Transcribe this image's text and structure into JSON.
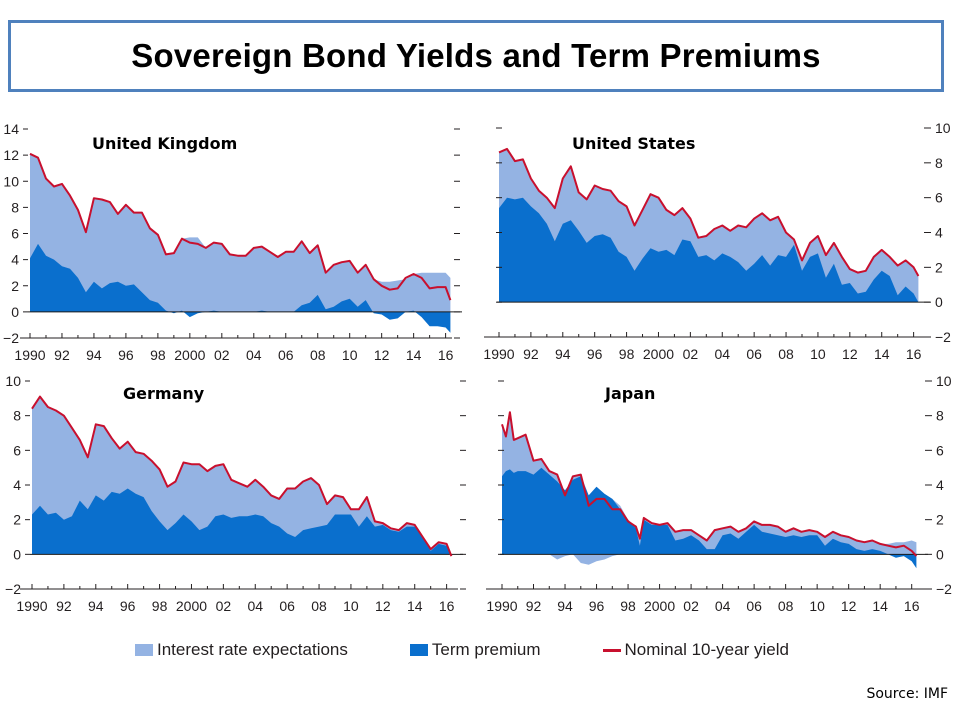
{
  "title": "Sovereign Bond Yields and Term Premiums",
  "source": "Source: IMF",
  "colors": {
    "expectations": "#94b3e3",
    "term_premium": "#0a6fcd",
    "yield": "#c8102e",
    "axis": "#231f20",
    "title_border": "#4f81bd"
  },
  "legend": [
    {
      "label": "Interest rate expectations",
      "type": "swatch",
      "color_key": "expectations"
    },
    {
      "label": "Term premium",
      "type": "swatch",
      "color_key": "term_premium"
    },
    {
      "label": "Nominal 10-year yield",
      "type": "line",
      "color_key": "yield"
    }
  ],
  "chart_data": [
    {
      "type": "area",
      "title": "United Kingdom",
      "xlabel": "",
      "ylabel": "",
      "x_tick_labels": [
        "1990",
        "92",
        "94",
        "96",
        "98",
        "2000",
        "02",
        "04",
        "06",
        "08",
        "10",
        "12",
        "14",
        "16"
      ],
      "y_ticks": [
        -2,
        0,
        2,
        4,
        6,
        8,
        10,
        12,
        14
      ],
      "y_tick_side": "left",
      "ylim": [
        -2,
        14
      ],
      "xlim": [
        1990,
        2016.4
      ],
      "x": [
        1990,
        1990.5,
        1991,
        1991.5,
        1992,
        1992.5,
        1993,
        1993.5,
        1994,
        1994.5,
        1995,
        1995.5,
        1996,
        1996.5,
        1997,
        1997.5,
        1998,
        1998.5,
        1999,
        1999.5,
        2000,
        2000.5,
        2001,
        2001.5,
        2002,
        2002.5,
        2003,
        2003.5,
        2004,
        2004.5,
        2005,
        2005.5,
        2006,
        2006.5,
        2007,
        2007.5,
        2008,
        2008.5,
        2009,
        2009.5,
        2010,
        2010.5,
        2011,
        2011.5,
        2012,
        2012.5,
        2013,
        2013.5,
        2014,
        2014.5,
        2015,
        2015.5,
        2016,
        2016.3
      ],
      "series": [
        {
          "name": "Nominal 10-year yield",
          "values": [
            12.1,
            11.8,
            10.2,
            9.6,
            9.8,
            8.9,
            7.8,
            6.1,
            8.7,
            8.6,
            8.4,
            7.5,
            8.2,
            7.6,
            7.6,
            6.4,
            5.9,
            4.4,
            4.5,
            5.6,
            5.3,
            5.2,
            4.9,
            5.3,
            5.2,
            4.4,
            4.3,
            4.3,
            4.9,
            5.0,
            4.6,
            4.2,
            4.6,
            4.6,
            5.4,
            4.5,
            5.1,
            3.0,
            3.6,
            3.8,
            3.9,
            3.0,
            3.6,
            2.5,
            2.0,
            1.7,
            1.8,
            2.6,
            2.9,
            2.6,
            1.8,
            1.9,
            1.9,
            0.9
          ]
        },
        {
          "name": "Term premium",
          "values": [
            4.1,
            5.2,
            4.3,
            4.0,
            3.5,
            3.3,
            2.6,
            1.5,
            2.3,
            1.8,
            2.2,
            2.3,
            2.0,
            2.1,
            1.5,
            0.9,
            0.7,
            0.1,
            -0.1,
            0.1,
            -0.4,
            -0.1,
            0.0,
            0.1,
            0.0,
            0.0,
            0.0,
            0.0,
            0.0,
            0.1,
            0.0,
            0.0,
            0.0,
            0.0,
            0.5,
            0.7,
            1.3,
            0.2,
            0.4,
            0.8,
            1.0,
            0.4,
            0.9,
            -0.1,
            -0.2,
            -0.6,
            -0.5,
            0.0,
            0.1,
            -0.4,
            -1.1,
            -1.1,
            -1.2,
            -1.6
          ]
        }
      ]
    },
    {
      "type": "area",
      "title": "United States",
      "xlabel": "",
      "ylabel": "",
      "x_tick_labels": [
        "1990",
        "92",
        "94",
        "96",
        "98",
        "2000",
        "02",
        "04",
        "06",
        "08",
        "10",
        "12",
        "14",
        "16"
      ],
      "y_ticks": [
        -2,
        0,
        2,
        4,
        6,
        8,
        10
      ],
      "y_tick_side": "right",
      "ylim": [
        -2,
        10
      ],
      "xlim": [
        1990,
        2016.4
      ],
      "x": [
        1990,
        1990.5,
        1991,
        1991.5,
        1992,
        1992.5,
        1993,
        1993.5,
        1994,
        1994.5,
        1995,
        1995.5,
        1996,
        1996.5,
        1997,
        1997.5,
        1998,
        1998.5,
        1999,
        1999.5,
        2000,
        2000.5,
        2001,
        2001.5,
        2002,
        2002.5,
        2003,
        2003.5,
        2004,
        2004.5,
        2005,
        2005.5,
        2006,
        2006.5,
        2007,
        2007.5,
        2008,
        2008.5,
        2009,
        2009.5,
        2010,
        2010.5,
        2011,
        2011.5,
        2012,
        2012.5,
        2013,
        2013.5,
        2014,
        2014.5,
        2015,
        2015.5,
        2016,
        2016.3
      ],
      "series": [
        {
          "name": "Nominal 10-year yield",
          "values": [
            8.6,
            8.8,
            8.1,
            8.2,
            7.1,
            6.4,
            6.0,
            5.4,
            7.1,
            7.8,
            6.3,
            5.9,
            6.7,
            6.5,
            6.4,
            5.8,
            5.5,
            4.4,
            5.3,
            6.2,
            6.0,
            5.3,
            5.0,
            5.4,
            4.8,
            3.7,
            3.8,
            4.2,
            4.4,
            4.1,
            4.4,
            4.3,
            4.8,
            5.1,
            4.7,
            4.9,
            4.0,
            3.6,
            2.4,
            3.4,
            3.8,
            2.7,
            3.4,
            2.6,
            1.9,
            1.7,
            1.8,
            2.6,
            3.0,
            2.6,
            2.1,
            2.4,
            2.0,
            1.5
          ]
        },
        {
          "name": "Term premium",
          "values": [
            5.4,
            6.0,
            5.9,
            6.0,
            5.5,
            5.1,
            4.5,
            3.5,
            4.5,
            4.7,
            4.1,
            3.4,
            3.8,
            3.9,
            3.7,
            2.9,
            2.6,
            1.8,
            2.5,
            3.1,
            2.9,
            3.0,
            2.7,
            3.6,
            3.5,
            2.6,
            2.7,
            2.4,
            2.8,
            2.6,
            2.3,
            1.8,
            2.2,
            2.7,
            2.1,
            2.7,
            2.6,
            3.3,
            1.8,
            2.6,
            2.8,
            1.4,
            2.2,
            1.0,
            1.1,
            0.5,
            0.6,
            1.3,
            1.8,
            1.5,
            0.4,
            0.9,
            0.5,
            0.0
          ]
        }
      ]
    },
    {
      "type": "area",
      "title": "Germany",
      "xlabel": "",
      "ylabel": "",
      "x_tick_labels": [
        "1990",
        "92",
        "94",
        "96",
        "98",
        "2000",
        "02",
        "04",
        "06",
        "08",
        "10",
        "12",
        "14",
        "16"
      ],
      "y_ticks": [
        -2,
        0,
        2,
        4,
        6,
        8,
        10
      ],
      "y_tick_side": "left",
      "ylim": [
        -2,
        10
      ],
      "xlim": [
        1990,
        2016.4
      ],
      "x": [
        1990,
        1990.5,
        1991,
        1991.5,
        1992,
        1992.5,
        1993,
        1993.5,
        1994,
        1994.5,
        1995,
        1995.5,
        1996,
        1996.5,
        1997,
        1997.5,
        1998,
        1998.5,
        1999,
        1999.5,
        2000,
        2000.5,
        2001,
        2001.5,
        2002,
        2002.5,
        2003,
        2003.5,
        2004,
        2004.5,
        2005,
        2005.5,
        2006,
        2006.5,
        2007,
        2007.5,
        2008,
        2008.5,
        2009,
        2009.5,
        2010,
        2010.5,
        2011,
        2011.5,
        2012,
        2012.5,
        2013,
        2013.5,
        2014,
        2014.5,
        2015,
        2015.5,
        2016,
        2016.3
      ],
      "series": [
        {
          "name": "Nominal 10-year yield",
          "values": [
            8.4,
            9.1,
            8.5,
            8.3,
            8.0,
            7.3,
            6.6,
            5.6,
            7.5,
            7.4,
            6.7,
            6.1,
            6.5,
            5.9,
            5.8,
            5.4,
            4.9,
            3.9,
            4.2,
            5.3,
            5.2,
            5.2,
            4.8,
            5.1,
            5.2,
            4.3,
            4.1,
            3.9,
            4.3,
            3.9,
            3.4,
            3.2,
            3.8,
            3.8,
            4.2,
            4.4,
            4.0,
            2.9,
            3.4,
            3.3,
            2.6,
            2.6,
            3.3,
            1.9,
            1.8,
            1.5,
            1.4,
            1.8,
            1.7,
            1.0,
            0.3,
            0.7,
            0.6,
            -0.1
          ]
        },
        {
          "name": "Term premium",
          "values": [
            2.3,
            2.8,
            2.3,
            2.4,
            2.0,
            2.2,
            3.1,
            2.6,
            3.4,
            3.1,
            3.6,
            3.5,
            3.8,
            3.5,
            3.3,
            2.5,
            1.9,
            1.4,
            1.8,
            2.3,
            1.9,
            1.4,
            1.6,
            2.2,
            2.3,
            2.1,
            2.2,
            2.2,
            2.3,
            2.2,
            1.8,
            1.6,
            1.2,
            1.0,
            1.4,
            1.5,
            1.6,
            1.7,
            2.3,
            2.3,
            2.3,
            1.6,
            2.2,
            1.6,
            1.7,
            1.4,
            1.3,
            1.6,
            1.6,
            1.0,
            0.2,
            0.6,
            0.5,
            -0.1
          ]
        }
      ]
    },
    {
      "type": "area",
      "title": "Japan",
      "xlabel": "",
      "ylabel": "",
      "x_tick_labels": [
        "1990",
        "92",
        "94",
        "96",
        "98",
        "2000",
        "02",
        "04",
        "06",
        "08",
        "10",
        "12",
        "14",
        "16"
      ],
      "y_ticks": [
        -2,
        0,
        2,
        4,
        6,
        8,
        10
      ],
      "y_tick_side": "right",
      "ylim": [
        -2,
        10
      ],
      "xlim": [
        1990,
        2016.4
      ],
      "x": [
        1990,
        1990.25,
        1990.5,
        1990.75,
        1991,
        1991.5,
        1992,
        1992.5,
        1993,
        1993.5,
        1994,
        1994.5,
        1995,
        1995.5,
        1996,
        1996.5,
        1997,
        1997.5,
        1998,
        1998.5,
        1998.75,
        1999,
        1999.5,
        2000,
        2000.5,
        2001,
        2001.5,
        2002,
        2002.5,
        2003,
        2003.5,
        2004,
        2004.5,
        2005,
        2005.5,
        2006,
        2006.5,
        2007,
        2007.5,
        2008,
        2008.5,
        2009,
        2009.5,
        2010,
        2010.5,
        2011,
        2011.5,
        2012,
        2012.5,
        2013,
        2013.5,
        2014,
        2014.5,
        2015,
        2015.5,
        2016,
        2016.3
      ],
      "series": [
        {
          "name": "Nominal 10-year yield",
          "values": [
            7.5,
            6.8,
            8.2,
            6.6,
            6.7,
            6.9,
            5.4,
            5.5,
            4.8,
            4.6,
            3.4,
            4.5,
            4.6,
            2.8,
            3.2,
            3.2,
            2.6,
            2.6,
            1.9,
            1.6,
            0.9,
            2.1,
            1.8,
            1.7,
            1.8,
            1.3,
            1.4,
            1.4,
            1.1,
            0.8,
            1.4,
            1.5,
            1.6,
            1.3,
            1.5,
            1.9,
            1.7,
            1.7,
            1.6,
            1.3,
            1.5,
            1.3,
            1.4,
            1.3,
            1.0,
            1.3,
            1.1,
            1.0,
            0.8,
            0.7,
            0.8,
            0.6,
            0.5,
            0.4,
            0.5,
            0.2,
            -0.1
          ]
        },
        {
          "name": "Term premium",
          "values": [
            4.5,
            4.8,
            4.9,
            4.7,
            4.8,
            4.8,
            4.6,
            5.0,
            4.6,
            4.2,
            3.7,
            4.3,
            4.5,
            3.4,
            3.9,
            3.5,
            3.2,
            2.6,
            2.0,
            1.5,
            0.5,
            2.0,
            1.7,
            1.7,
            1.7,
            0.8,
            0.9,
            1.1,
            0.8,
            0.3,
            0.3,
            1.1,
            1.2,
            0.9,
            1.3,
            1.7,
            1.3,
            1.2,
            1.1,
            1.0,
            1.1,
            1.0,
            1.1,
            1.1,
            0.5,
            0.9,
            0.7,
            0.6,
            0.3,
            0.2,
            0.3,
            0.2,
            0.0,
            -0.2,
            -0.1,
            -0.4,
            -0.8
          ]
        },
        {
          "name": "Interest rate expectations (negative part)",
          "values": [
            0,
            0,
            0,
            0,
            0,
            0,
            0,
            0,
            0,
            -0.3,
            -0.1,
            0,
            -0.5,
            -0.6,
            -0.4,
            -0.3,
            -0.1,
            0,
            0,
            0,
            0,
            0,
            0,
            0,
            0,
            0,
            0,
            0,
            0,
            0,
            0,
            0,
            0,
            0,
            0,
            0,
            0,
            0,
            0,
            0,
            0,
            0,
            0,
            0,
            0,
            0,
            0,
            0,
            0,
            0,
            0,
            0,
            0,
            0,
            0,
            0,
            0
          ]
        },
        {
          "name": "Interest rate expectations (top)",
          "values": [
            7.5,
            6.8,
            8.2,
            6.6,
            6.7,
            6.9,
            5.4,
            5.5,
            4.8,
            4.6,
            3.4,
            4.5,
            4.6,
            3.4,
            3.9,
            3.5,
            3.2,
            2.8,
            2.0,
            1.6,
            0.9,
            2.1,
            1.8,
            1.7,
            1.8,
            1.3,
            1.4,
            1.4,
            1.1,
            0.8,
            1.4,
            1.5,
            1.6,
            1.3,
            1.5,
            1.9,
            1.7,
            1.7,
            1.6,
            1.3,
            1.5,
            1.3,
            1.4,
            1.3,
            1.0,
            1.3,
            1.1,
            1.0,
            0.8,
            0.7,
            0.8,
            0.6,
            0.6,
            0.7,
            0.7,
            0.8,
            0.7
          ]
        }
      ]
    }
  ]
}
